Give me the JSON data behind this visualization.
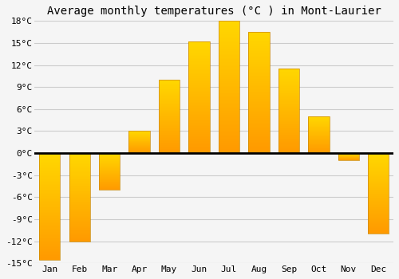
{
  "title": "Average monthly temperatures (°C ) in Mont-Laurier",
  "months": [
    "Jan",
    "Feb",
    "Mar",
    "Apr",
    "May",
    "Jun",
    "Jul",
    "Aug",
    "Sep",
    "Oct",
    "Nov",
    "Dec"
  ],
  "temperatures": [
    -14.5,
    -12.0,
    -5.0,
    3.0,
    10.0,
    15.2,
    18.0,
    16.5,
    11.5,
    5.0,
    -1.0,
    -11.0
  ],
  "bar_color": "#FFC125",
  "bar_edge_color": "#CC8800",
  "ylim_min": -15,
  "ylim_max": 18,
  "yticks": [
    -15,
    -12,
    -9,
    -6,
    -3,
    0,
    3,
    6,
    9,
    12,
    15,
    18
  ],
  "ytick_labels": [
    "-15°C",
    "-12°C",
    "-9°C",
    "-6°C",
    "-3°C",
    "0°C",
    "3°C",
    "6°C",
    "9°C",
    "12°C",
    "15°C",
    "18°C"
  ],
  "plot_bg_color": "#F5F5F5",
  "fig_bg_color": "#F5F5F5",
  "grid_color": "#CCCCCC",
  "zero_line_color": "#000000",
  "title_fontsize": 10,
  "tick_fontsize": 8,
  "bar_width": 0.7
}
